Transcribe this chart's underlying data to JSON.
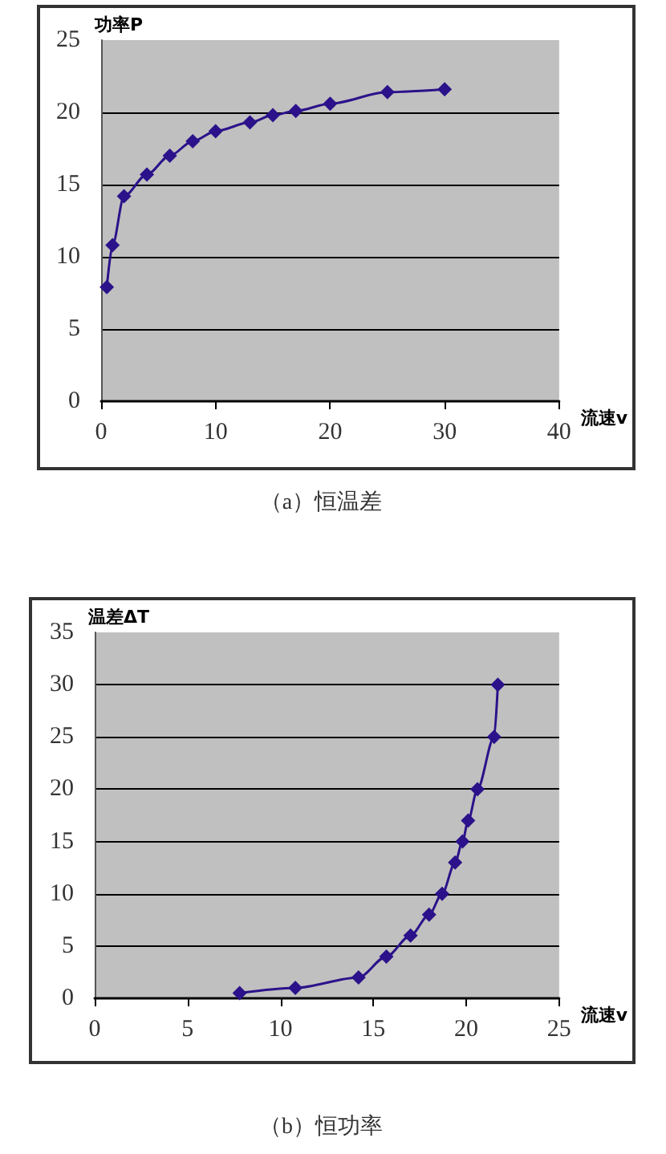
{
  "chart_data": [
    {
      "type": "line",
      "xlabel": "流速v",
      "ylabel": "功率P",
      "annotations": [
        "（a）恒温差"
      ],
      "x": [
        0.5,
        1,
        2,
        4,
        6,
        8,
        10,
        13,
        15,
        17,
        20,
        25,
        30
      ],
      "values": [
        7.9,
        10.8,
        14.2,
        15.7,
        17.0,
        18.0,
        18.7,
        19.3,
        19.8,
        20.1,
        20.6,
        21.4,
        21.6
      ],
      "color": "#2b128a",
      "marker": "diamond",
      "line_style": "solid",
      "xlim": [
        0,
        40
      ],
      "xticks": [
        0,
        10,
        20,
        30,
        40
      ],
      "ylim": [
        0,
        25
      ],
      "yticks": [
        0,
        5,
        10,
        15,
        20,
        25
      ],
      "grid": "y"
    },
    {
      "type": "line",
      "xlabel": "流速v",
      "ylabel": "温差ΔT",
      "annotations": [
        "（b）恒功率"
      ],
      "x": [
        7.8,
        10.8,
        14.2,
        15.7,
        17.0,
        18.0,
        18.7,
        19.4,
        19.8,
        20.1,
        20.6,
        21.5,
        21.7
      ],
      "values": [
        0.5,
        1,
        2,
        4,
        6,
        8,
        10,
        13,
        15,
        17,
        20,
        25,
        30
      ],
      "color": "#2b128a",
      "marker": "diamond",
      "line_style": "solid",
      "xlim": [
        0,
        25
      ],
      "xticks": [
        0,
        5,
        10,
        15,
        20,
        25
      ],
      "ylim": [
        0,
        35
      ],
      "yticks": [
        0,
        5,
        10,
        15,
        20,
        25,
        30,
        35
      ],
      "grid": "y"
    }
  ]
}
